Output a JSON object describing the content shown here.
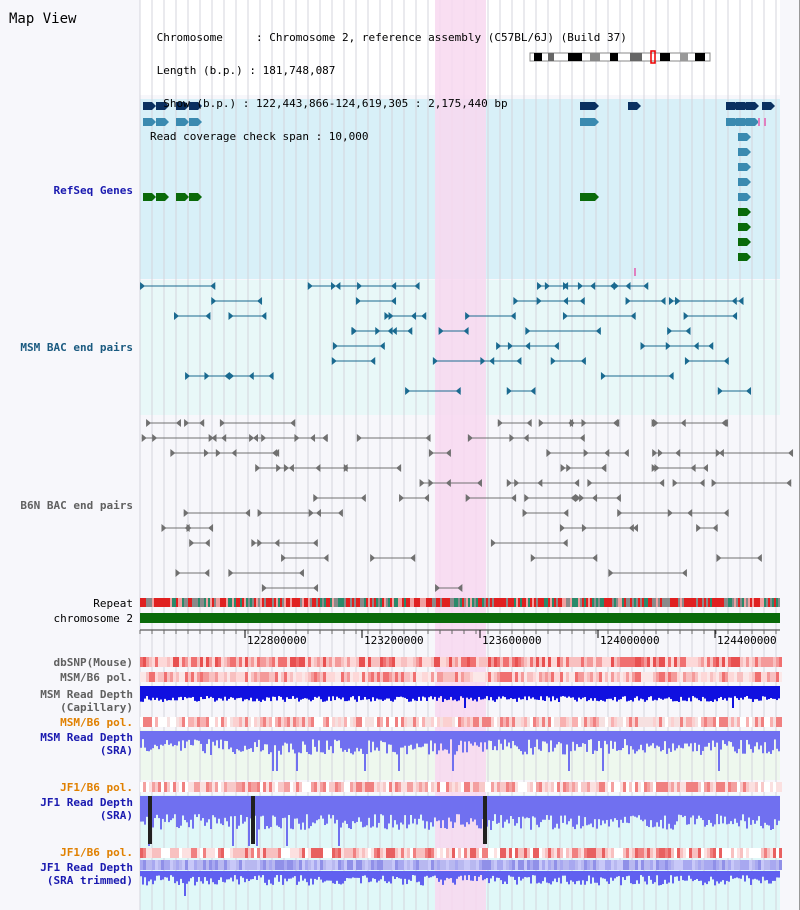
{
  "title": "Map View",
  "info": {
    "chromosome_line": " Chromosome     : Chromosome 2, reference assembly (C57BL/6J) (Build 37)",
    "length_line": " Length (b.p.) : 181,748,087",
    "show_line": "  Show (b.p.) : 122,443,866-124,619,305 : 2,175,440 bp",
    "coverage_line": "Read coverage check span : 10,000"
  },
  "tracks": {
    "refseq": "RefSeq Genes",
    "msm_bac": "MSM BAC end pairs",
    "b6n_bac": "B6N BAC end pairs",
    "repeat": "Repeat",
    "chromosome": "chromosome 2",
    "dbsnp": "dbSNP(Mouse)",
    "msm_b6_pol_1": "MSM/B6 pol.",
    "msm_read_depth_cap": "MSM Read Depth\n(Capillary)",
    "msm_b6_pol_2": "MSM/B6 pol.",
    "msm_read_depth_sra": "MSM Read Depth\n(SRA)",
    "jf1_b6_pol_1": "JF1/B6 pol.",
    "jf1_read_depth_sra": "JF1 Read Depth\n(SRA)",
    "jf1_b6_pol_2": "JF1/B6 pol.",
    "jf1_read_depth_trim": "JF1 Read Depth\n(SRA trimmed)"
  },
  "axis": {
    "ticks": [
      "122800000",
      "123200000",
      "123600000",
      "124000000",
      "124400000"
    ]
  },
  "colors": {
    "highlight": "#f8d8f0",
    "refseq_bg": "#d8f0f8",
    "msm_bg": "#e8f8f8",
    "chrom_green": "#0a6a0a"
  }
}
